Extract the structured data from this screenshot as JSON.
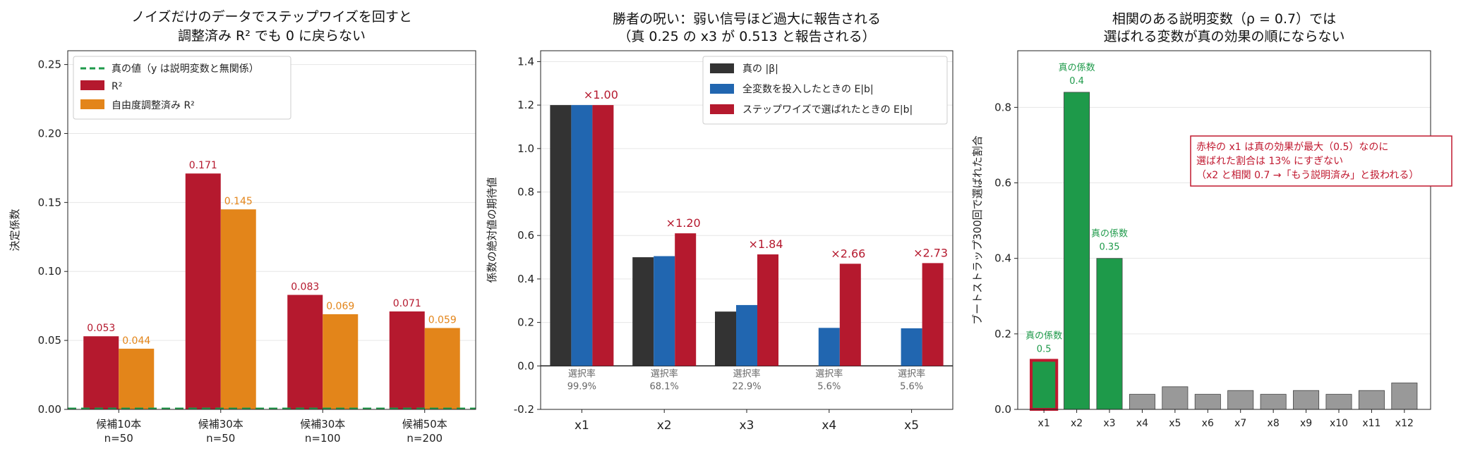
{
  "chart_data": [
    {
      "type": "bar",
      "title": [
        "ノイズだけのデータでステップワイズを回すと",
        "調整済み R² でも 0 に戻らない"
      ],
      "ylabel": "決定係数",
      "xlabel": "",
      "ylim": [
        0,
        0.26
      ],
      "yticks": [
        "0.00",
        "0.05",
        "0.10",
        "0.15",
        "0.20",
        "0.25"
      ],
      "grid": "y",
      "legend_position": "top-left",
      "categories": [
        [
          "候補10本",
          "n=50"
        ],
        [
          "候補30本",
          "n=50"
        ],
        [
          "候補30本",
          "n=100"
        ],
        [
          "候補50本",
          "n=200"
        ]
      ],
      "reference_line": {
        "name": "真の値（y は説明変数と無関係）",
        "value": 0,
        "color": "#1e9a4a"
      },
      "series": [
        {
          "name": "R²",
          "color": "#b5192e",
          "values": [
            0.053,
            0.171,
            0.083,
            0.071
          ],
          "labels": [
            "0.053",
            "0.171",
            "0.083",
            "0.071"
          ]
        },
        {
          "name": "自由度調整済み R²",
          "color": "#e3851a",
          "values": [
            0.044,
            0.145,
            0.069,
            0.059
          ],
          "labels": [
            "0.044",
            "0.145",
            "0.069",
            "0.059"
          ]
        }
      ]
    },
    {
      "type": "bar",
      "title": [
        "勝者の呪い：弱い信号ほど過大に報告される",
        "（真 0.25 の x3 が 0.513 と報告される）"
      ],
      "ylabel": "係数の絶対値の期待値",
      "xlabel": "",
      "ylim": [
        -0.2,
        1.45
      ],
      "yticks": [
        "-0.2",
        "0.0",
        "0.2",
        "0.4",
        "0.6",
        "0.8",
        "1.0",
        "1.2",
        "1.4"
      ],
      "grid": "y",
      "legend_position": "top-right",
      "categories": [
        "x1",
        "x2",
        "x3",
        "x4",
        "x5"
      ],
      "series": [
        {
          "name": "真の |β|",
          "color": "#333333",
          "values": [
            1.2,
            0.5,
            0.25,
            0,
            0
          ]
        },
        {
          "name": "全変数を投入したときの E|b|",
          "color": "#2166b0",
          "values": [
            1.2,
            0.505,
            0.28,
            0.175,
            0.173
          ]
        },
        {
          "name": "ステップワイズで選ばれたときの E|b|",
          "color": "#b5192e",
          "values": [
            1.2,
            0.61,
            0.513,
            0.47,
            0.473
          ]
        }
      ],
      "ratio_labels": [
        "×1.00",
        "×1.20",
        "×1.84",
        "×2.66",
        "×2.73"
      ],
      "selection_label": "選択率",
      "selection_rates": [
        "99.9%",
        "68.1%",
        "22.9%",
        "5.6%",
        "5.6%"
      ]
    },
    {
      "type": "bar",
      "title": [
        "相関のある説明変数（ρ = 0.7）では",
        "選ばれる変数が真の効果の順にならない"
      ],
      "ylabel": "ブートストラップ300回で選ばれた割合",
      "xlabel": "",
      "ylim": [
        0,
        0.95
      ],
      "yticks": [
        "0.0",
        "0.2",
        "0.4",
        "0.6",
        "0.8"
      ],
      "grid": "y",
      "categories": [
        "x1",
        "x2",
        "x3",
        "x4",
        "x5",
        "x6",
        "x7",
        "x8",
        "x9",
        "x10",
        "x11",
        "x12"
      ],
      "values": [
        0.13,
        0.84,
        0.4,
        0.04,
        0.06,
        0.04,
        0.05,
        0.04,
        0.05,
        0.04,
        0.05,
        0.07
      ],
      "colors": {
        "true_effect": "#1e9a4a",
        "noise": "#999999",
        "highlight": "#c0182f"
      },
      "true_effect_labels": [
        {
          "index": 0,
          "label": "真の係数",
          "value": "0.5"
        },
        {
          "index": 1,
          "label": "真の係数",
          "value": "0.4"
        },
        {
          "index": 2,
          "label": "真の係数",
          "value": "0.35"
        }
      ],
      "highlight_index": 0,
      "annotation": [
        "赤枠の x1 は真の効果が最大（0.5）なのに",
        "選ばれた割合は 13% にすぎない",
        "（x2 と相関 0.7 →「もう説明済み」と扱われる）"
      ]
    }
  ]
}
